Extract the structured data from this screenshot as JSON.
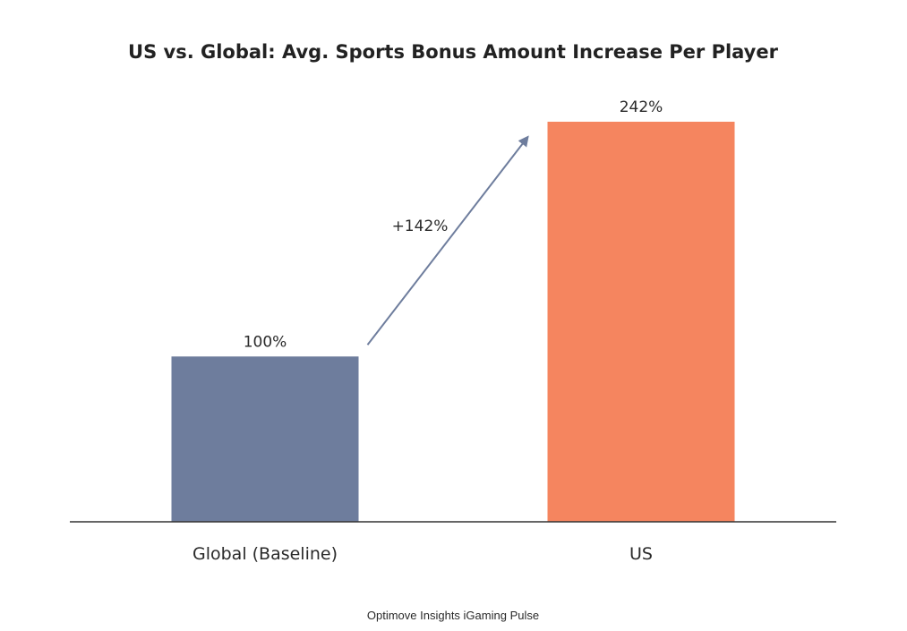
{
  "chart_data": {
    "type": "bar",
    "title": "US vs. Global: Avg. Sports Bonus Amount Increase Per Player",
    "categories": [
      "Global (Baseline)",
      "US"
    ],
    "values": [
      100,
      242
    ],
    "value_labels": [
      "100%",
      "242%"
    ],
    "colors": [
      "#6e7d9d",
      "#f5855f"
    ],
    "ylim": [
      0,
      242
    ],
    "grid": false,
    "annotation": {
      "text": "+142%",
      "from_category": "Global (Baseline)",
      "to_category": "US",
      "arrow_color": "#6e7d9d"
    },
    "source": "Optimove Insights iGaming Pulse"
  }
}
